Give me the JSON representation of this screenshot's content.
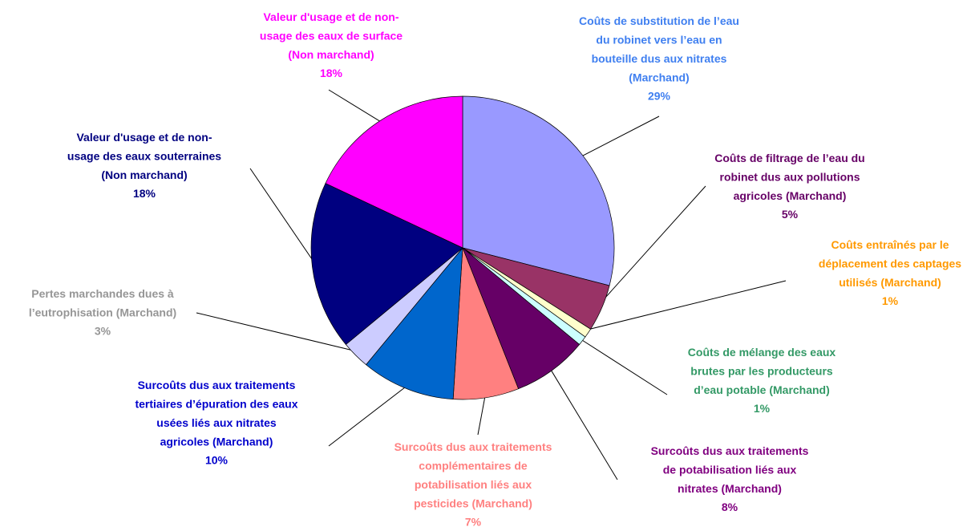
{
  "chart_data": {
    "type": "pie",
    "categories": [
      "Coûts de substitution de l’eau\ndu robinet vers l’eau en\nbouteille dus aux nitrates\n(Marchand)",
      "Coûts de filtrage de l’eau du\nrobinet dus aux pollutions\nagricoles (Marchand)",
      "Coûts entraînés par le\ndéplacement des captages\nutilisés (Marchand)",
      "Coûts de mélange des eaux\nbrutes par les producteurs\nd’eau potable (Marchand)",
      "Surcoûts dus aux traitements\nde potabilisation liés aux\nnitrates (Marchand)",
      "Surcoûts dus aux traitements\ncomplémentaires de\npotabilisation liés aux\npesticides (Marchand)",
      "Surcoûts dus aux traitements\ntertiaires d’épuration des eaux\nusées liés aux nitrates\nagricoles (Marchand)",
      "Pertes marchandes dues à\nl’eutrophisation (Marchand)",
      "Valeur d'usage et de non-\nusage des eaux souterraines\n(Non marchand)",
      "Valeur d'usage et de non-\nusage des eaux de surface\n(Non marchand)"
    ],
    "values": [
      29,
      5,
      1,
      1,
      8,
      7,
      10,
      3,
      18,
      18
    ],
    "value_labels": [
      "29%",
      "5%",
      "1%",
      "1%",
      "8%",
      "7%",
      "10%",
      "3%",
      "18%",
      "18%"
    ],
    "colors": [
      "#9999ff",
      "#993366",
      "#ffffcc",
      "#ccffff",
      "#660066",
      "#ff8080",
      "#0066cc",
      "#ccccff",
      "#000080",
      "#ff00ff"
    ],
    "label_colors": [
      "#3f7ff0",
      "#660066",
      "#ff9900",
      "#339966",
      "#800080",
      "#ff8080",
      "#0000cc",
      "#969696",
      "#000080",
      "#ff00ff"
    ]
  }
}
